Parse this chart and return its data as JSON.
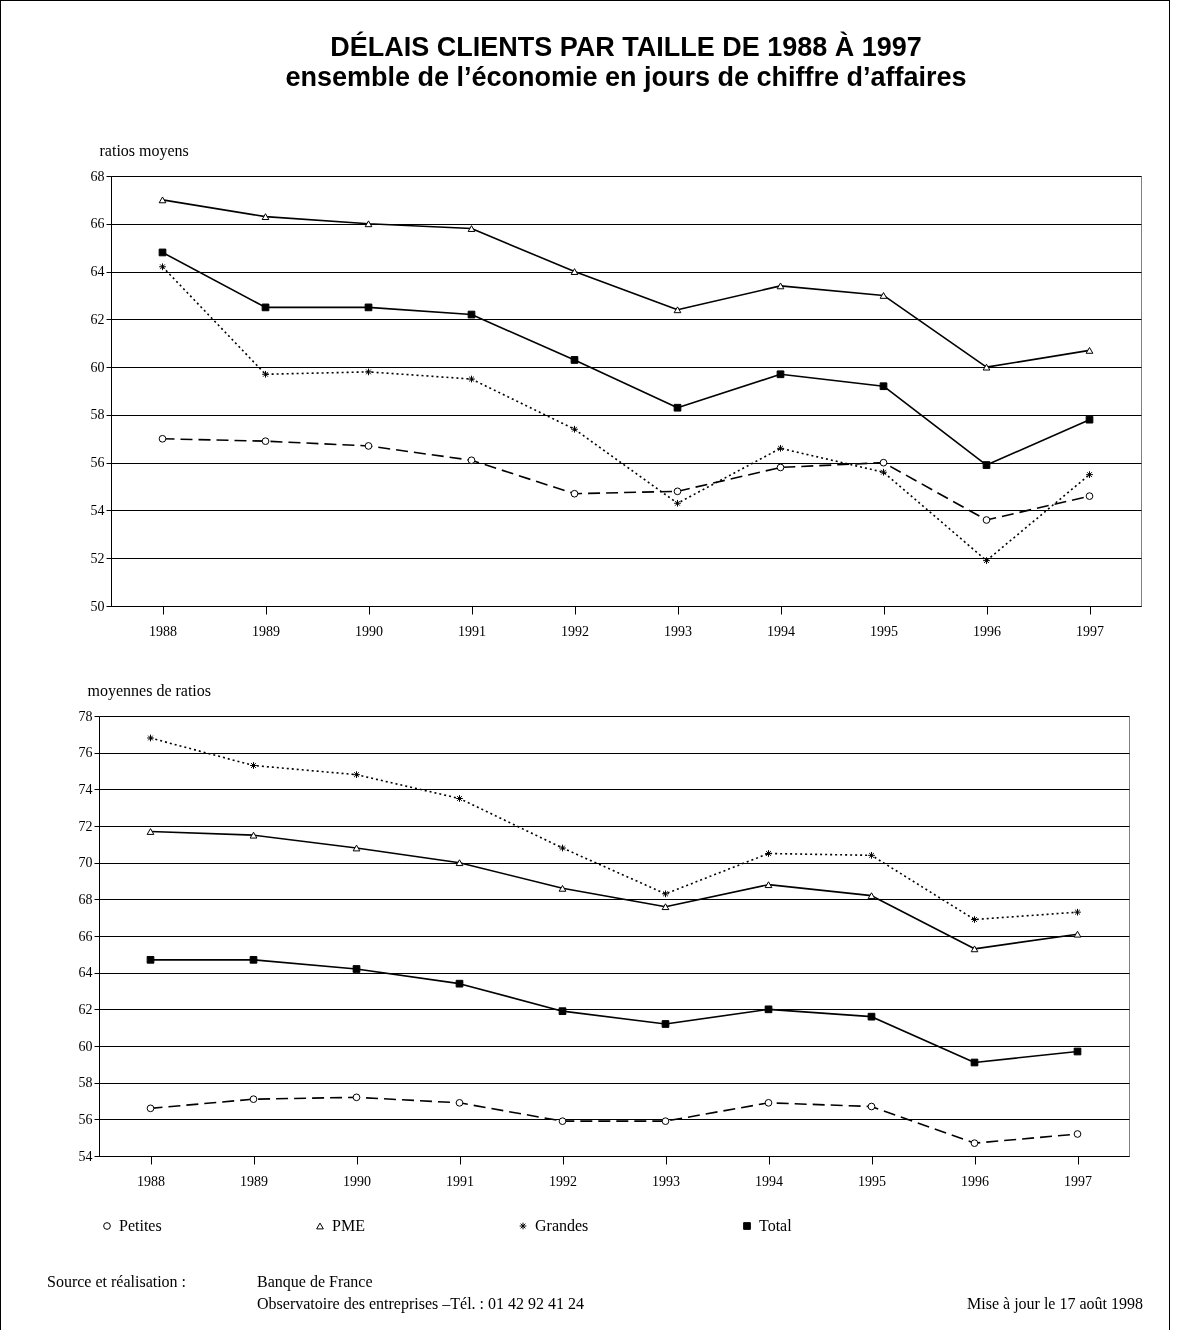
{
  "chart_data": [
    {
      "type": "line",
      "title": "DÉLAIS CLIENTS PAR TAILLE DE 1988 À 1997",
      "subtitle": "ensemble de l’économie en jours de chiffre d’affaires",
      "ylabel": "ratios moyens",
      "categories": [
        "1988",
        "1989",
        "1990",
        "1991",
        "1992",
        "1993",
        "1994",
        "1995",
        "1996",
        "1997"
      ],
      "series": [
        {
          "color": "#000000",
          "line_style": "dashed",
          "marker": "circle",
          "values": [
            57.0,
            56.9,
            56.7,
            56.1,
            54.7,
            54.8,
            55.8,
            56.0,
            53.6,
            54.6
          ]
        },
        {
          "color": "#000000",
          "line_style": "solid",
          "marker": "triangle",
          "values": [
            67.0,
            66.3,
            66.0,
            65.8,
            64.0,
            62.4,
            63.4,
            63.0,
            60.0,
            60.7
          ]
        },
        {
          "color": "#000000",
          "line_style": "dotted",
          "marker": "cross",
          "values": [
            64.2,
            59.7,
            59.8,
            59.5,
            57.4,
            54.3,
            56.6,
            55.6,
            51.9,
            55.5
          ]
        },
        {
          "color": "#000000",
          "line_style": "solid",
          "marker": "square",
          "values": [
            64.8,
            62.5,
            62.5,
            62.2,
            60.3,
            58.3,
            59.7,
            59.2,
            55.9,
            57.8
          ]
        }
      ],
      "ylim": [
        50,
        68
      ],
      "yticks": [
        50,
        52,
        54,
        56,
        58,
        60,
        62,
        64,
        66,
        68
      ],
      "grid": "y"
    },
    {
      "type": "line",
      "ylabel": "moyennes de ratios",
      "categories": [
        "1988",
        "1989",
        "1990",
        "1991",
        "1992",
        "1993",
        "1994",
        "1995",
        "1996",
        "1997"
      ],
      "series": [
        {
          "name": "Petites",
          "color": "#000000",
          "line_style": "dashed",
          "marker": "circle",
          "values": [
            56.6,
            57.1,
            57.2,
            56.9,
            55.9,
            55.9,
            56.9,
            56.7,
            54.7,
            55.2
          ]
        },
        {
          "name": "PME",
          "color": "#000000",
          "line_style": "solid",
          "marker": "triangle",
          "values": [
            71.7,
            71.5,
            70.8,
            70.0,
            68.6,
            67.6,
            68.8,
            68.2,
            65.3,
            66.1
          ]
        },
        {
          "name": "Grandes",
          "color": "#000000",
          "line_style": "dotted",
          "marker": "cross",
          "values": [
            76.8,
            75.3,
            74.8,
            73.5,
            70.8,
            68.3,
            70.5,
            70.4,
            66.9,
            67.3
          ]
        },
        {
          "name": "Total",
          "color": "#000000",
          "line_style": "solid",
          "marker": "square",
          "values": [
            64.7,
            64.7,
            64.2,
            63.4,
            61.9,
            61.2,
            62.0,
            61.6,
            59.1,
            59.7
          ]
        }
      ],
      "ylim": [
        54,
        78
      ],
      "yticks": [
        54,
        56,
        58,
        60,
        62,
        64,
        66,
        68,
        70,
        72,
        74,
        76,
        78
      ],
      "grid": "y",
      "legend": "bottom",
      "annotations": [
        "Source et réalisation :",
        "Banque de France",
        "Observatoire des entreprises –Tél. : 01 42 92 41 24",
        "Mise à jour le 17 août 1998"
      ]
    }
  ]
}
